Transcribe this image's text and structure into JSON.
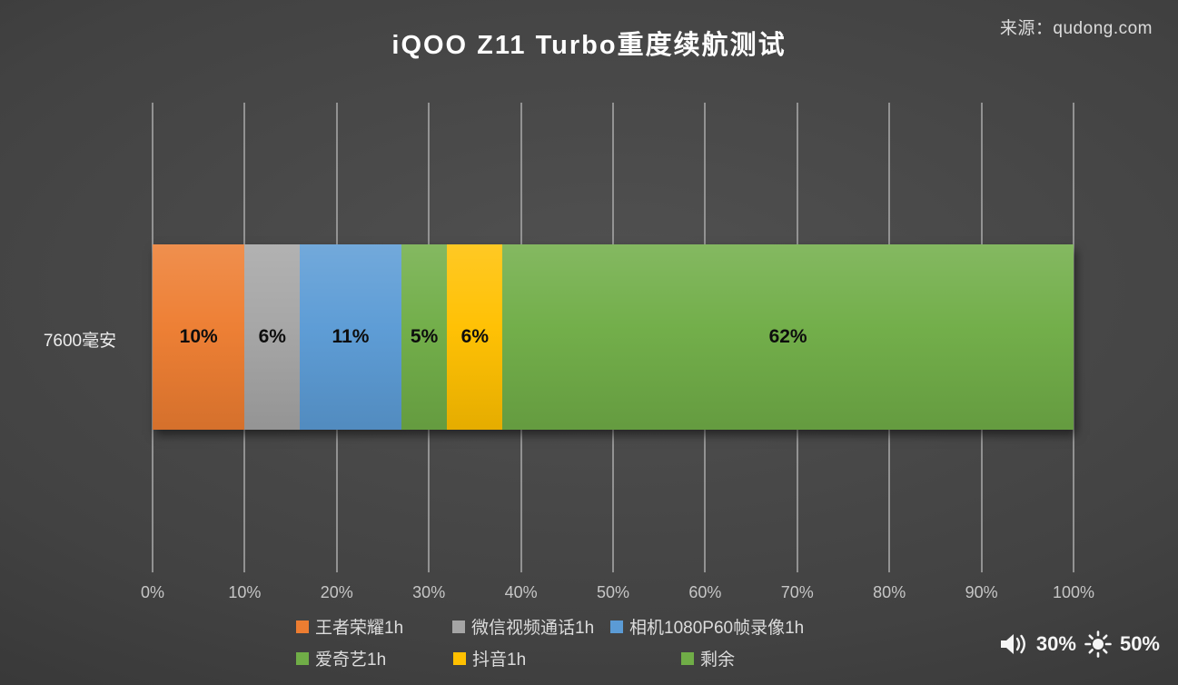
{
  "title": "iQOO Z11 Turbo重度续航测试",
  "source_text": "来源：qudong.com",
  "status": {
    "volume_icon": "speaker-icon",
    "volume": "30%",
    "brightness_icon": "sun-icon",
    "brightness": "50%"
  },
  "chart_data": {
    "type": "bar",
    "orientation": "horizontal-stacked",
    "title": "iQOO Z11 Turbo重度续航测试",
    "category_label": "7600毫安",
    "series": [
      {
        "name": "王者荣耀1h",
        "value": 10,
        "label": "10%",
        "color": "#ED7D31"
      },
      {
        "name": "微信视频通话1h",
        "value": 6,
        "label": "6%",
        "color": "#A5A5A5"
      },
      {
        "name": "相机1080P60帧录像1h",
        "value": 11,
        "label": "11%",
        "color": "#5B9BD5"
      },
      {
        "name": "爱奇艺1h",
        "value": 5,
        "label": "5%",
        "color": "#70AD47"
      },
      {
        "name": "抖音1h",
        "value": 6,
        "label": "6%",
        "color": "#FFC000"
      },
      {
        "name": "剩余",
        "value": 62,
        "label": "62%",
        "color": "#70AD47"
      }
    ],
    "x_axis": {
      "min": 0,
      "max": 100,
      "ticks": [
        "0%",
        "10%",
        "20%",
        "30%",
        "40%",
        "50%",
        "60%",
        "70%",
        "80%",
        "90%",
        "100%"
      ],
      "grid": true
    },
    "legend_position": "bottom",
    "background": "dark-gray-gradient"
  }
}
